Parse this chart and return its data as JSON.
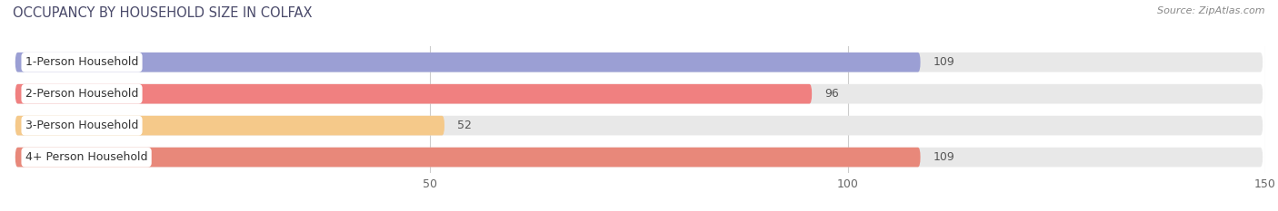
{
  "title": "OCCUPANCY BY HOUSEHOLD SIZE IN COLFAX",
  "source_text": "Source: ZipAtlas.com",
  "categories": [
    "1-Person Household",
    "2-Person Household",
    "3-Person Household",
    "4+ Person Household"
  ],
  "values": [
    109,
    96,
    52,
    109
  ],
  "bar_colors": [
    "#9b9fd4",
    "#f08080",
    "#f5c98a",
    "#e8887a"
  ],
  "xlim": [
    0,
    150
  ],
  "xticks": [
    50,
    100,
    150
  ],
  "background_color": "#ffffff",
  "bar_bg_color": "#e8e8e8",
  "title_fontsize": 10.5,
  "title_color": "#4a4a6a",
  "tick_fontsize": 9,
  "bar_label_fontsize": 9,
  "category_fontsize": 9,
  "bar_height": 0.62,
  "bar_gap": 1.0
}
